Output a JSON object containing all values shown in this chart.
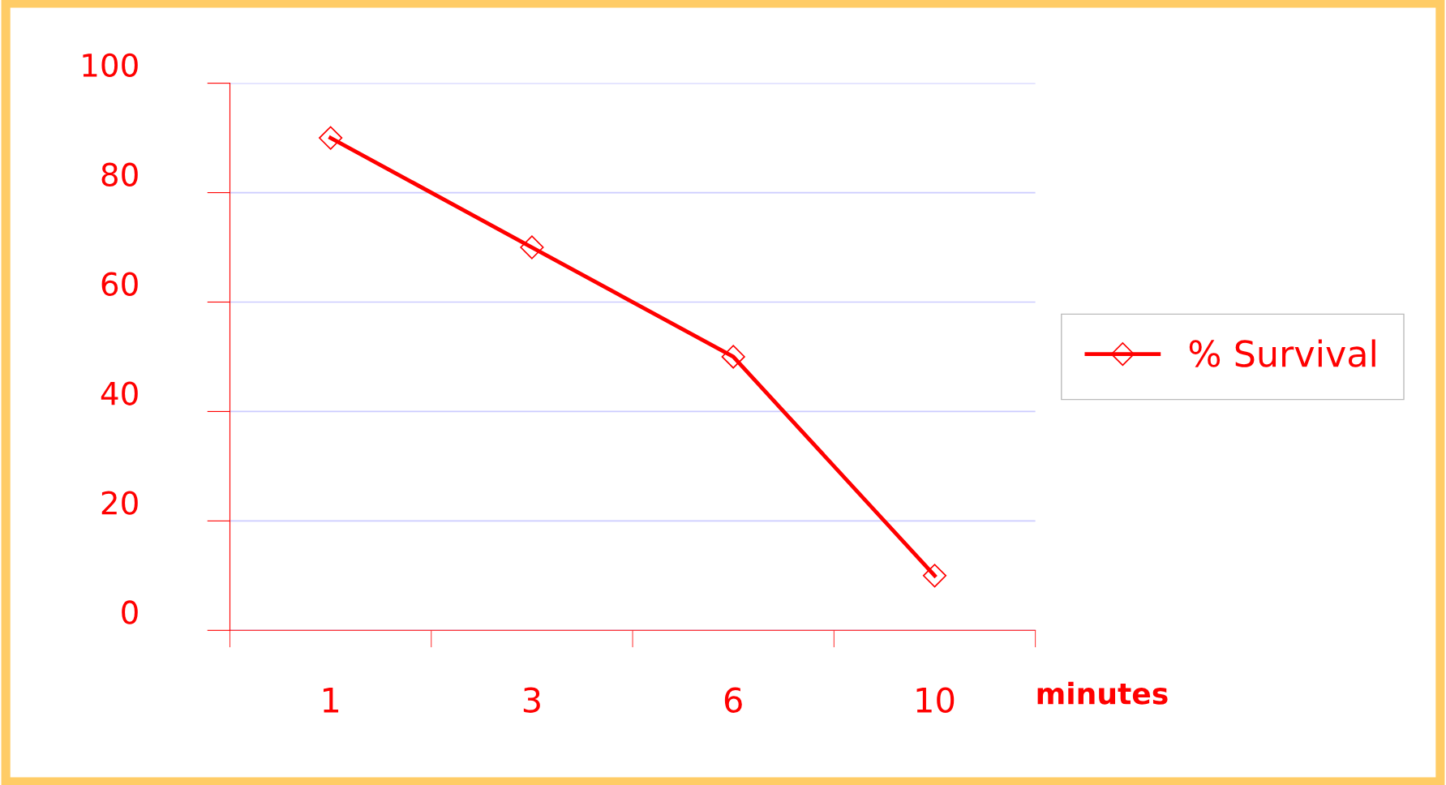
{
  "chart_data": {
    "type": "line",
    "xlabel": "minutes",
    "categories": [
      "1",
      "3",
      "6",
      "10"
    ],
    "series": [
      {
        "name": "% Survival",
        "color": "#ff0000",
        "values": [
          90,
          70,
          50,
          10
        ]
      }
    ],
    "ylim": [
      0,
      100
    ],
    "yticks": [
      0,
      20,
      40,
      60,
      80,
      100
    ],
    "grid": "y",
    "legend": "right",
    "marker": "diamond",
    "line_style": "solid"
  }
}
